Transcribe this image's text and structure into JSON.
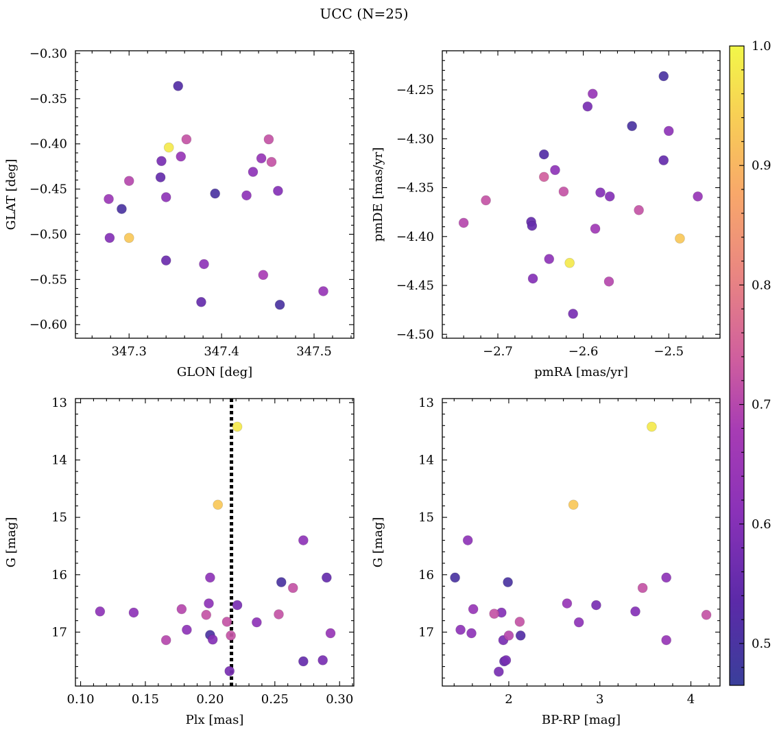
{
  "figure": {
    "title": "UCC (N=25)"
  },
  "colorbar": {
    "colormap": "plasma",
    "vmin": 0.465,
    "vmax": 1.0,
    "ticks": [
      "0.5",
      "0.6",
      "0.7",
      "0.8",
      "0.9",
      "1.0"
    ]
  },
  "chart_data": [
    {
      "type": "scatter",
      "xlabel": "GLON [deg]",
      "ylabel": "GLAT [deg]",
      "xlim": [
        347.242,
        347.543
      ],
      "ylim": [
        -0.615,
        -0.297
      ],
      "xticks": [
        "347.3",
        "347.4",
        "347.5"
      ],
      "yticks": [
        "−0.60",
        "−0.55",
        "−0.50",
        "−0.45",
        "−0.40",
        "−0.35",
        "−0.30"
      ],
      "grid": false,
      "points": [
        {
          "x": 347.353,
          "y": -0.336,
          "p": 0.52
        },
        {
          "x": 347.343,
          "y": -0.404,
          "p": 0.98
        },
        {
          "x": 347.362,
          "y": -0.395,
          "p": 0.72
        },
        {
          "x": 347.356,
          "y": -0.414,
          "p": 0.64
        },
        {
          "x": 347.335,
          "y": -0.419,
          "p": 0.58
        },
        {
          "x": 347.334,
          "y": -0.437,
          "p": 0.55
        },
        {
          "x": 347.3,
          "y": -0.441,
          "p": 0.7
        },
        {
          "x": 347.278,
          "y": -0.461,
          "p": 0.65
        },
        {
          "x": 347.292,
          "y": -0.472,
          "p": 0.5
        },
        {
          "x": 347.279,
          "y": -0.504,
          "p": 0.6
        },
        {
          "x": 347.3,
          "y": -0.504,
          "p": 0.93
        },
        {
          "x": 347.34,
          "y": -0.459,
          "p": 0.62
        },
        {
          "x": 347.34,
          "y": -0.529,
          "p": 0.56
        },
        {
          "x": 347.381,
          "y": -0.533,
          "p": 0.62
        },
        {
          "x": 347.378,
          "y": -0.575,
          "p": 0.55
        },
        {
          "x": 347.393,
          "y": -0.455,
          "p": 0.5
        },
        {
          "x": 347.427,
          "y": -0.457,
          "p": 0.62
        },
        {
          "x": 347.434,
          "y": -0.431,
          "p": 0.62
        },
        {
          "x": 347.443,
          "y": -0.416,
          "p": 0.64
        },
        {
          "x": 347.451,
          "y": -0.395,
          "p": 0.72
        },
        {
          "x": 347.454,
          "y": -0.42,
          "p": 0.72
        },
        {
          "x": 347.461,
          "y": -0.452,
          "p": 0.6
        },
        {
          "x": 347.445,
          "y": -0.545,
          "p": 0.68
        },
        {
          "x": 347.463,
          "y": -0.578,
          "p": 0.5
        },
        {
          "x": 347.51,
          "y": -0.563,
          "p": 0.64
        }
      ]
    },
    {
      "type": "scatter",
      "xlabel": "pmRA [mas/yr]",
      "ylabel": "pmDE [mas/yr]",
      "xlim": [
        -2.765,
        -2.44
      ],
      "ylim": [
        -4.504,
        -4.21
      ],
      "xticks": [
        "−2.7",
        "−2.6",
        "−2.5"
      ],
      "yticks": [
        "−4.50",
        "−4.45",
        "−4.40",
        "−4.35",
        "−4.30",
        "−4.25"
      ],
      "grid": false,
      "points": [
        {
          "x": -2.506,
          "y": -4.236,
          "p": 0.5
        },
        {
          "x": -2.589,
          "y": -4.254,
          "p": 0.64
        },
        {
          "x": -2.595,
          "y": -4.267,
          "p": 0.58
        },
        {
          "x": -2.543,
          "y": -4.287,
          "p": 0.5
        },
        {
          "x": -2.5,
          "y": -4.292,
          "p": 0.62
        },
        {
          "x": -2.506,
          "y": -4.322,
          "p": 0.55
        },
        {
          "x": -2.646,
          "y": -4.316,
          "p": 0.52
        },
        {
          "x": -2.633,
          "y": -4.332,
          "p": 0.62
        },
        {
          "x": -2.646,
          "y": -4.339,
          "p": 0.74
        },
        {
          "x": -2.623,
          "y": -4.354,
          "p": 0.72
        },
        {
          "x": -2.58,
          "y": -4.355,
          "p": 0.6
        },
        {
          "x": -2.569,
          "y": -4.359,
          "p": 0.6
        },
        {
          "x": -2.466,
          "y": -4.359,
          "p": 0.64
        },
        {
          "x": -2.714,
          "y": -4.363,
          "p": 0.72
        },
        {
          "x": -2.535,
          "y": -4.373,
          "p": 0.72
        },
        {
          "x": -2.74,
          "y": -4.386,
          "p": 0.7
        },
        {
          "x": -2.661,
          "y": -4.385,
          "p": 0.55
        },
        {
          "x": -2.66,
          "y": -4.389,
          "p": 0.55
        },
        {
          "x": -2.586,
          "y": -4.392,
          "p": 0.66
        },
        {
          "x": -2.487,
          "y": -4.402,
          "p": 0.93
        },
        {
          "x": -2.64,
          "y": -4.423,
          "p": 0.62
        },
        {
          "x": -2.616,
          "y": -4.427,
          "p": 0.98
        },
        {
          "x": -2.659,
          "y": -4.443,
          "p": 0.6
        },
        {
          "x": -2.57,
          "y": -4.446,
          "p": 0.7
        },
        {
          "x": -2.612,
          "y": -4.479,
          "p": 0.58
        }
      ]
    },
    {
      "type": "scatter",
      "xlabel": "Plx [mas]",
      "ylabel": "G [mag]",
      "xlim": [
        0.096,
        0.311
      ],
      "ylim": [
        17.94,
        12.93
      ],
      "y_inverted": true,
      "xticks": [
        "0.10",
        "0.15",
        "0.20",
        "0.25",
        "0.30"
      ],
      "yticks": [
        "13",
        "14",
        "15",
        "16",
        "17"
      ],
      "grid": false,
      "vline": {
        "x": 0.2165,
        "style": "dotted",
        "color": "#000000"
      },
      "points": [
        {
          "x": 0.221,
          "y": 13.42,
          "p": 0.98
        },
        {
          "x": 0.206,
          "y": 14.78,
          "p": 0.93
        },
        {
          "x": 0.272,
          "y": 15.4,
          "p": 0.62
        },
        {
          "x": 0.2,
          "y": 16.05,
          "p": 0.62
        },
        {
          "x": 0.255,
          "y": 16.13,
          "p": 0.5
        },
        {
          "x": 0.29,
          "y": 16.05,
          "p": 0.55
        },
        {
          "x": 0.264,
          "y": 16.23,
          "p": 0.72
        },
        {
          "x": 0.199,
          "y": 16.5,
          "p": 0.62
        },
        {
          "x": 0.221,
          "y": 16.53,
          "p": 0.58
        },
        {
          "x": 0.178,
          "y": 16.6,
          "p": 0.7
        },
        {
          "x": 0.115,
          "y": 16.64,
          "p": 0.62
        },
        {
          "x": 0.141,
          "y": 16.66,
          "p": 0.62
        },
        {
          "x": 0.197,
          "y": 16.7,
          "p": 0.72
        },
        {
          "x": 0.253,
          "y": 16.69,
          "p": 0.72
        },
        {
          "x": 0.213,
          "y": 16.82,
          "p": 0.72
        },
        {
          "x": 0.236,
          "y": 16.83,
          "p": 0.62
        },
        {
          "x": 0.182,
          "y": 16.96,
          "p": 0.62
        },
        {
          "x": 0.2,
          "y": 17.05,
          "p": 0.5
        },
        {
          "x": 0.216,
          "y": 17.06,
          "p": 0.72
        },
        {
          "x": 0.293,
          "y": 17.02,
          "p": 0.64
        },
        {
          "x": 0.166,
          "y": 17.14,
          "p": 0.7
        },
        {
          "x": 0.202,
          "y": 17.13,
          "p": 0.6
        },
        {
          "x": 0.272,
          "y": 17.51,
          "p": 0.55
        },
        {
          "x": 0.287,
          "y": 17.49,
          "p": 0.58
        },
        {
          "x": 0.215,
          "y": 17.68,
          "p": 0.58
        }
      ]
    },
    {
      "type": "scatter",
      "xlabel": "BP-RP [mag]",
      "ylabel": "G [mag]",
      "xlim": [
        1.27,
        4.32
      ],
      "ylim": [
        17.94,
        12.93
      ],
      "y_inverted": true,
      "xticks": [
        "2",
        "3",
        "4"
      ],
      "yticks": [
        "13",
        "14",
        "15",
        "16",
        "17"
      ],
      "grid": false,
      "points": [
        {
          "x": 3.57,
          "y": 13.42,
          "p": 0.98
        },
        {
          "x": 2.71,
          "y": 14.78,
          "p": 0.93
        },
        {
          "x": 1.55,
          "y": 15.4,
          "p": 0.62
        },
        {
          "x": 1.41,
          "y": 16.05,
          "p": 0.5
        },
        {
          "x": 1.99,
          "y": 16.13,
          "p": 0.5
        },
        {
          "x": 3.73,
          "y": 16.05,
          "p": 0.62
        },
        {
          "x": 3.47,
          "y": 16.23,
          "p": 0.72
        },
        {
          "x": 2.64,
          "y": 16.5,
          "p": 0.64
        },
        {
          "x": 2.96,
          "y": 16.53,
          "p": 0.58
        },
        {
          "x": 1.61,
          "y": 16.6,
          "p": 0.64
        },
        {
          "x": 3.39,
          "y": 16.64,
          "p": 0.6
        },
        {
          "x": 1.92,
          "y": 16.66,
          "p": 0.6
        },
        {
          "x": 1.84,
          "y": 16.68,
          "p": 0.72
        },
        {
          "x": 4.17,
          "y": 16.7,
          "p": 0.72
        },
        {
          "x": 2.12,
          "y": 16.82,
          "p": 0.72
        },
        {
          "x": 2.77,
          "y": 16.83,
          "p": 0.62
        },
        {
          "x": 1.47,
          "y": 16.96,
          "p": 0.62
        },
        {
          "x": 1.59,
          "y": 17.02,
          "p": 0.62
        },
        {
          "x": 2.0,
          "y": 17.06,
          "p": 0.7
        },
        {
          "x": 2.13,
          "y": 17.06,
          "p": 0.52
        },
        {
          "x": 1.94,
          "y": 17.14,
          "p": 0.58
        },
        {
          "x": 3.73,
          "y": 17.14,
          "p": 0.64
        },
        {
          "x": 1.97,
          "y": 17.49,
          "p": 0.58
        },
        {
          "x": 1.95,
          "y": 17.51,
          "p": 0.55
        },
        {
          "x": 1.89,
          "y": 17.69,
          "p": 0.58
        }
      ]
    }
  ]
}
